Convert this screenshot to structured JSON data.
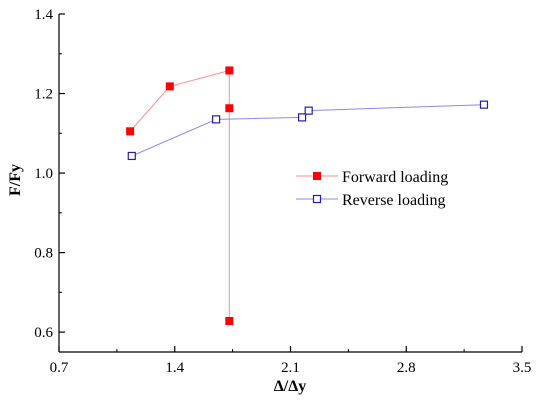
{
  "chart_data": {
    "type": "scatter",
    "xlabel": "Δ/Δy",
    "ylabel": "F/Fy",
    "xlim": [
      0.7,
      3.5
    ],
    "ylim": [
      0.55,
      1.4
    ],
    "x_ticks": [
      "0.7",
      "1.4",
      "2.1",
      "2.8",
      "3.5"
    ],
    "x_tick_values": [
      0.7,
      1.4,
      2.1,
      2.8,
      3.5
    ],
    "y_ticks": [
      "0.6",
      "0.8",
      "1.0",
      "1.2",
      "1.4"
    ],
    "y_tick_values": [
      0.6,
      0.8,
      1.0,
      1.2,
      1.4
    ],
    "legend_position": "right",
    "grid": false,
    "series": [
      {
        "name": "Forward loading",
        "color": "#ff0000",
        "line_color": "#ff8a8a",
        "marker": "filled-square",
        "points": [
          [
            1.13,
            1.105
          ],
          [
            1.37,
            1.218
          ],
          [
            1.73,
            1.258
          ],
          [
            1.73,
            1.163
          ],
          [
            1.73,
            0.628
          ]
        ]
      },
      {
        "name": "Reverse loading",
        "color": "#1f1fb0",
        "line_color": "#8a8ae8",
        "marker": "open-square",
        "points": [
          [
            1.14,
            1.043
          ],
          [
            1.65,
            1.135
          ],
          [
            2.17,
            1.14
          ],
          [
            2.21,
            1.157
          ],
          [
            3.27,
            1.172
          ]
        ]
      }
    ]
  }
}
